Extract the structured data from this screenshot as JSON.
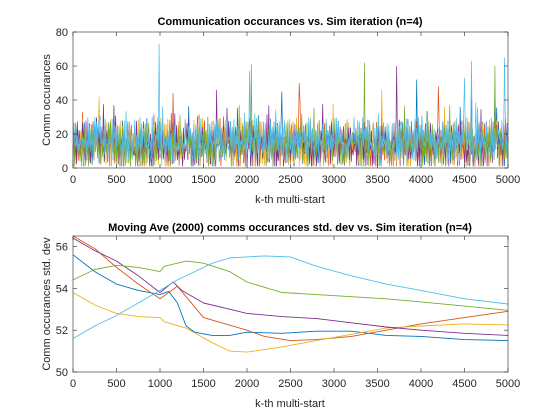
{
  "chart_data": [
    {
      "type": "line",
      "title": "Communication occurances vs. Sim iteration (n=4)",
      "xlabel": "k-th multi-start",
      "ylabel": "Comm occurances",
      "xlim": [
        0,
        5000
      ],
      "ylim": [
        0,
        80
      ],
      "xticks": [
        0,
        500,
        1000,
        1500,
        2000,
        2500,
        3000,
        3500,
        4000,
        4500,
        5000
      ],
      "yticks": [
        0,
        20,
        40,
        60,
        80
      ],
      "grid": false,
      "legend": "none",
      "series": [
        {
          "color": "#0072BD",
          "baseline": 10,
          "band": [
            1,
            28
          ],
          "peaks": [
            [
              3950,
              52
            ],
            [
              2400,
              45
            ],
            [
              4850,
              44
            ]
          ]
        },
        {
          "color": "#D95319",
          "baseline": 10,
          "band": [
            1,
            28
          ],
          "peaks": [
            [
              2600,
              50
            ],
            [
              1150,
              44
            ],
            [
              4200,
              48
            ]
          ]
        },
        {
          "color": "#EDB120",
          "baseline": 10,
          "band": [
            1,
            30
          ],
          "peaks": [
            [
              300,
              42
            ],
            [
              3550,
              46
            ]
          ]
        },
        {
          "color": "#7E2F8E",
          "baseline": 10,
          "band": [
            1,
            28
          ],
          "peaks": [
            [
              3720,
              60
            ],
            [
              1650,
              46
            ],
            [
              4580,
              51
            ]
          ]
        },
        {
          "color": "#77AC30",
          "baseline": 10,
          "band": [
            1,
            28
          ],
          "peaks": [
            [
              2050,
              61
            ],
            [
              3350,
              62
            ],
            [
              4850,
              60
            ]
          ]
        },
        {
          "color": "#4DBEEE",
          "baseline": 12,
          "band": [
            5,
            30
          ],
          "peaks": [
            [
              990,
              73
            ],
            [
              4580,
              63
            ],
            [
              4960,
              65
            ],
            [
              2030,
              57
            ],
            [
              4500,
              53
            ]
          ]
        }
      ]
    },
    {
      "type": "line",
      "title": "Moving Ave (2000) comms occurances std. dev vs. Sim iteration (n=4)",
      "xlabel": "k-th multi-start",
      "ylabel": "Comm occurances std. dev",
      "xlim": [
        0,
        5000
      ],
      "ylim": [
        50,
        56.5
      ],
      "xticks": [
        0,
        500,
        1000,
        1500,
        2000,
        2500,
        3000,
        3500,
        4000,
        4500,
        5000
      ],
      "yticks": [
        50,
        52,
        54,
        56
      ],
      "grid": false,
      "legend": "none",
      "series": [
        {
          "color": "#0072BD",
          "x": [
            0,
            250,
            500,
            750,
            1000,
            1100,
            1200,
            1300,
            1400,
            1600,
            1800,
            2000,
            2400,
            2800,
            3200,
            3600,
            4000,
            4500,
            5000
          ],
          "y": [
            55.6,
            54.8,
            54.2,
            53.9,
            53.7,
            53.85,
            53.3,
            52.2,
            51.9,
            51.75,
            51.75,
            51.9,
            51.85,
            51.95,
            51.95,
            51.75,
            51.7,
            51.55,
            51.5
          ]
        },
        {
          "color": "#D95319",
          "x": [
            0,
            250,
            500,
            750,
            1000,
            1200,
            1500,
            2000,
            2200,
            2500,
            2800,
            3200,
            3600,
            4000,
            4500,
            5000
          ],
          "y": [
            56.5,
            55.9,
            55.0,
            54.2,
            53.5,
            54.1,
            52.6,
            52.0,
            51.7,
            51.5,
            51.55,
            51.7,
            52.0,
            52.3,
            52.6,
            52.9
          ]
        },
        {
          "color": "#EDB120",
          "x": [
            0,
            250,
            500,
            750,
            1000,
            1050,
            1300,
            1600,
            1800,
            2000,
            2400,
            2800,
            3200,
            3600,
            4000,
            4500,
            5000
          ],
          "y": [
            53.8,
            53.2,
            52.8,
            52.65,
            52.6,
            52.4,
            52.1,
            51.4,
            51.0,
            50.95,
            51.2,
            51.5,
            51.8,
            52.1,
            52.2,
            52.3,
            52.25
          ]
        },
        {
          "color": "#7E2F8E",
          "x": [
            0,
            250,
            500,
            750,
            1000,
            1150,
            1250,
            1500,
            1800,
            2000,
            2400,
            2800,
            3200,
            3600,
            4000,
            4500,
            5000
          ],
          "y": [
            56.4,
            55.8,
            55.3,
            54.6,
            53.8,
            54.3,
            53.9,
            53.3,
            53.0,
            52.8,
            52.65,
            52.55,
            52.35,
            52.15,
            52.0,
            51.85,
            51.75
          ]
        },
        {
          "color": "#77AC30",
          "x": [
            0,
            250,
            500,
            750,
            1000,
            1050,
            1300,
            1500,
            1800,
            2000,
            2400,
            2800,
            3200,
            3600,
            4000,
            4500,
            5000
          ],
          "y": [
            54.4,
            54.9,
            55.1,
            55.0,
            54.8,
            55.05,
            55.3,
            55.2,
            54.8,
            54.3,
            53.8,
            53.7,
            53.6,
            53.5,
            53.35,
            53.15,
            52.95
          ]
        },
        {
          "color": "#4DBEEE",
          "x": [
            0,
            250,
            500,
            750,
            1000,
            1200,
            1400,
            1600,
            1800,
            2000,
            2200,
            2500,
            2800,
            3200,
            3600,
            4000,
            4500,
            5000
          ],
          "y": [
            51.6,
            52.2,
            52.7,
            53.3,
            53.9,
            54.4,
            54.8,
            55.2,
            55.45,
            55.5,
            55.55,
            55.5,
            55.05,
            54.6,
            54.2,
            53.9,
            53.5,
            53.25
          ]
        }
      ]
    }
  ]
}
